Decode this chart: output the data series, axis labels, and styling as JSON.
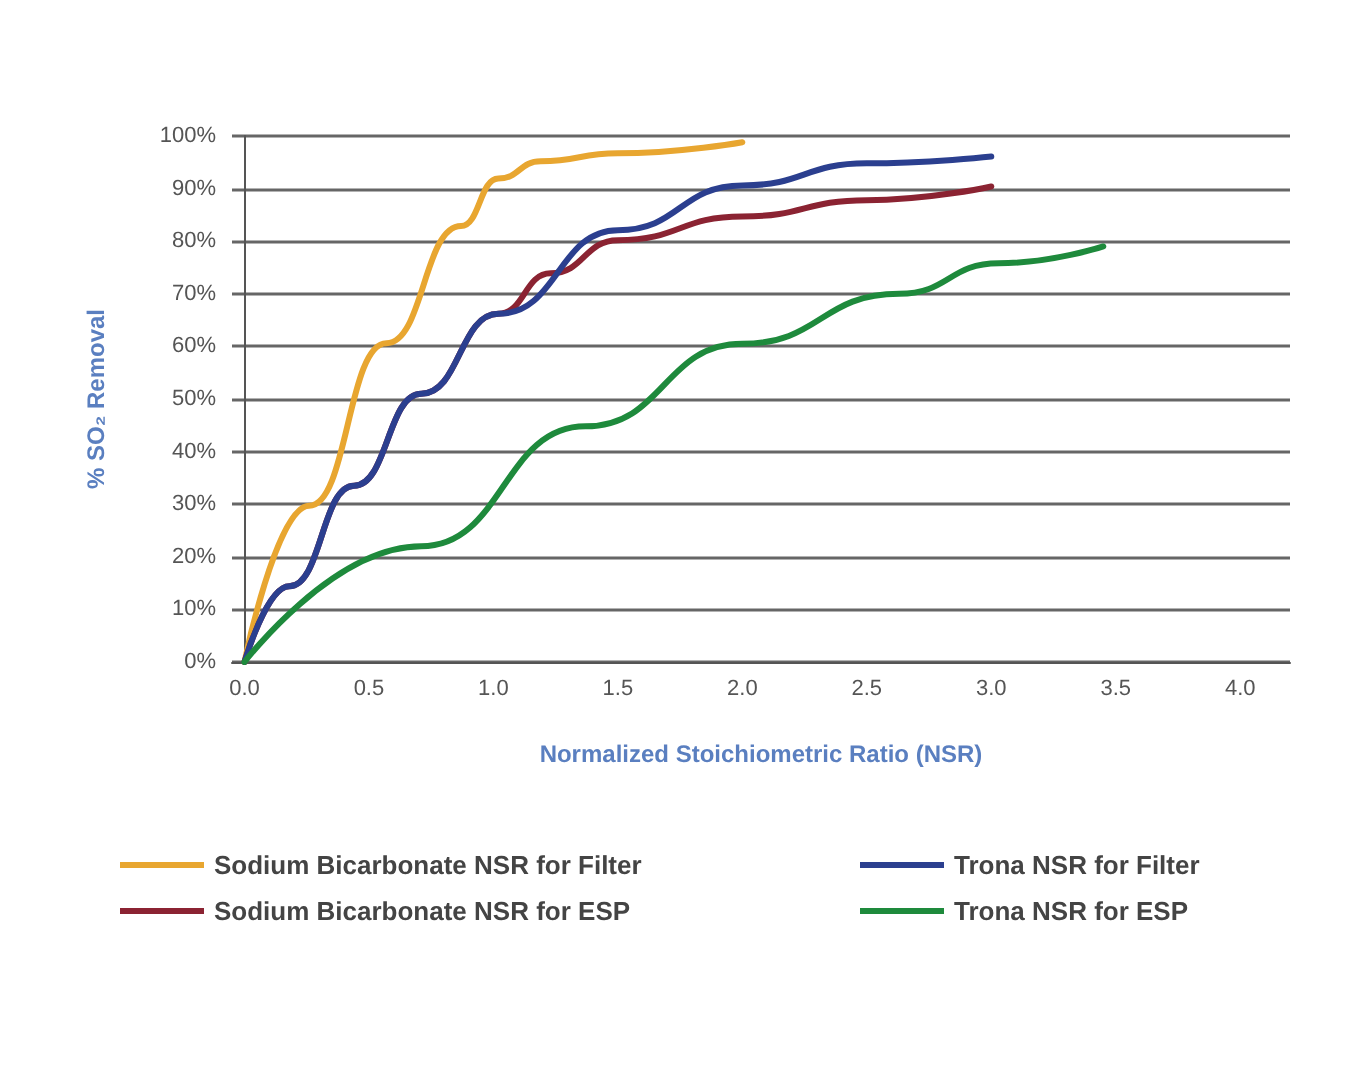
{
  "chart_data": {
    "type": "line",
    "xlabel": "Normalized Stoichiometric Ratio (NSR)",
    "ylabel": "% SO₂ Removal",
    "xlim": [
      -0.05,
      4.2
    ],
    "xticks": [
      {
        "value": 0,
        "label": "0.0"
      },
      {
        "value": 0.5,
        "label": "0.5"
      },
      {
        "value": 1,
        "label": "1.0"
      },
      {
        "value": 1.5,
        "label": "1.5"
      },
      {
        "value": 2,
        "label": "2.0"
      },
      {
        "value": 2.5,
        "label": "2.5"
      },
      {
        "value": 3,
        "label": "3.0"
      },
      {
        "value": 3.5,
        "label": "3.5"
      },
      {
        "value": 4,
        "label": "4.0"
      }
    ],
    "ylim": [
      0,
      100
    ],
    "yticks": [
      {
        "value": 0,
        "label": "0%"
      },
      {
        "value": 10,
        "label": "10%"
      },
      {
        "value": 20,
        "label": "20%"
      },
      {
        "value": 30,
        "label": "30%"
      },
      {
        "value": 40,
        "label": "40%"
      },
      {
        "value": 50,
        "label": "50%"
      },
      {
        "value": 60,
        "label": "60%"
      },
      {
        "value": 70,
        "label": "70%"
      },
      {
        "value": 80,
        "label": "80%"
      },
      {
        "value": 90,
        "label": "90%"
      },
      {
        "value": 100,
        "label": "100%"
      }
    ],
    "grid": "y",
    "legend": "bottom",
    "marker": "none",
    "line_style": "solid",
    "series": [
      {
        "name": "Sodium Bicarbonate NSR for Filter",
        "color": "#e8a630",
        "x": [
          0,
          0.26,
          0.57,
          0.87,
          1.02,
          1.19,
          1.5,
          2.0
        ],
        "values": [
          0,
          29.7,
          60.6,
          82.9,
          91.9,
          95.2,
          96.7,
          98.8
        ]
      },
      {
        "name": "Sodium Bicarbonate NSR for ESP",
        "color": "#8b2332",
        "x": [
          0,
          0.18,
          0.44,
          0.71,
          1.02,
          1.23,
          1.5,
          2.0,
          2.5,
          3.0
        ],
        "values": [
          0,
          14.4,
          33.5,
          51,
          66.2,
          73.9,
          80.2,
          84.7,
          87.8,
          90.4
        ]
      },
      {
        "name": "Trona NSR for Filter",
        "color": "#2b3f8f",
        "x": [
          0,
          0.18,
          0.44,
          0.71,
          1.02,
          1.5,
          2.0,
          2.5,
          3.0
        ],
        "values": [
          0,
          14.4,
          33.5,
          51,
          66.2,
          82.1,
          90.6,
          94.8,
          96.1
        ]
      },
      {
        "name": "Trona NSR for ESP",
        "color": "#1e8a3c",
        "x": [
          0,
          0.71,
          1.37,
          2.0,
          2.63,
          3.03,
          3.45
        ],
        "values": [
          0,
          22,
          44.8,
          60.5,
          70,
          75.8,
          79
        ]
      }
    ]
  }
}
